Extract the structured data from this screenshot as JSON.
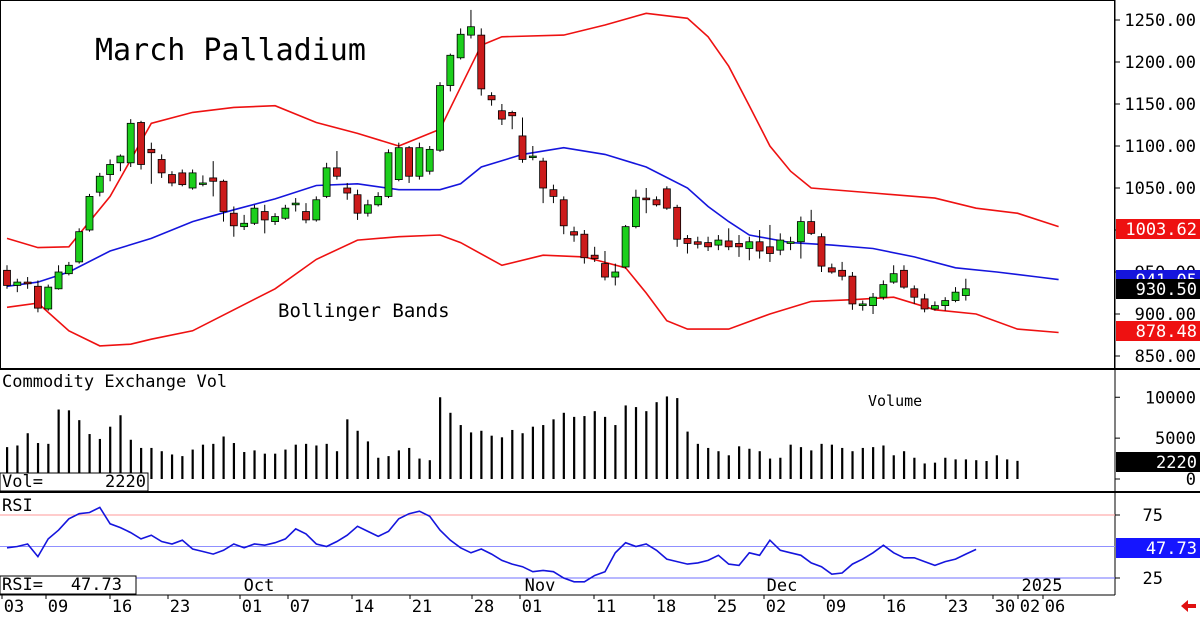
{
  "chart_data": [
    {
      "type": "candlestick",
      "title": "March Palladium",
      "annotation": "Bollinger Bands",
      "ylim": [
        835,
        1270
      ],
      "y_ticks": [
        "1250.00",
        "1200.00",
        "1150.00",
        "1100.00",
        "1050.00",
        "1000.00",
        "950.00",
        "900.00",
        "850.00"
      ],
      "last_labels": {
        "upper_band": "1003.62",
        "middle_band": "941.05",
        "lower_band": "878.48",
        "close": "930.50"
      },
      "colors": {
        "up": "#1ccf1c",
        "down": "#cc1b1b",
        "upper_band": "#ee1111",
        "lower_band": "#ee1111",
        "middle_band": "#1515dd"
      },
      "candles": [
        [
          952,
          958,
          930,
          934
        ],
        [
          934,
          942,
          926,
          938
        ],
        [
          938,
          944,
          930,
          936
        ],
        [
          933,
          940,
          902,
          907
        ],
        [
          906,
          935,
          904,
          932
        ],
        [
          930,
          958,
          929,
          950
        ],
        [
          948,
          962,
          946,
          958
        ],
        [
          962,
          1002,
          960,
          998
        ],
        [
          1000,
          1043,
          998,
          1040
        ],
        [
          1045,
          1068,
          1040,
          1064
        ],
        [
          1066,
          1084,
          1058,
          1078
        ],
        [
          1080,
          1090,
          1070,
          1088
        ],
        [
          1080,
          1132,
          1075,
          1127
        ],
        [
          1128,
          1130,
          1072,
          1078
        ],
        [
          1096,
          1104,
          1055,
          1092
        ],
        [
          1084,
          1090,
          1062,
          1068
        ],
        [
          1066,
          1070,
          1052,
          1056
        ],
        [
          1068,
          1072,
          1052,
          1054
        ],
        [
          1050,
          1072,
          1048,
          1068
        ],
        [
          1056,
          1065,
          1052,
          1056
        ],
        [
          1062,
          1082,
          1040,
          1058
        ],
        [
          1058,
          1060,
          1010,
          1022
        ],
        [
          1020,
          1028,
          992,
          1005
        ],
        [
          1004,
          1018,
          1000,
          1008
        ],
        [
          1008,
          1030,
          1006,
          1026
        ],
        [
          1022,
          1030,
          996,
          1012
        ],
        [
          1010,
          1020,
          1006,
          1016
        ],
        [
          1014,
          1030,
          1012,
          1026
        ],
        [
          1030,
          1038,
          1022,
          1032
        ],
        [
          1022,
          1032,
          1008,
          1012
        ],
        [
          1012,
          1040,
          1010,
          1036
        ],
        [
          1040,
          1080,
          1038,
          1074
        ],
        [
          1074,
          1094,
          1060,
          1064
        ],
        [
          1050,
          1056,
          1036,
          1044
        ],
        [
          1042,
          1048,
          1012,
          1020
        ],
        [
          1020,
          1036,
          1016,
          1030
        ],
        [
          1030,
          1045,
          1028,
          1040
        ],
        [
          1040,
          1096,
          1038,
          1092
        ],
        [
          1060,
          1104,
          1058,
          1098
        ],
        [
          1098,
          1100,
          1056,
          1064
        ],
        [
          1064,
          1104,
          1060,
          1098
        ],
        [
          1070,
          1100,
          1066,
          1096
        ],
        [
          1095,
          1176,
          1093,
          1172
        ],
        [
          1172,
          1210,
          1165,
          1208
        ],
        [
          1205,
          1240,
          1203,
          1233
        ],
        [
          1232,
          1262,
          1228,
          1242
        ],
        [
          1232,
          1240,
          1160,
          1168
        ],
        [
          1160,
          1164,
          1148,
          1155
        ],
        [
          1142,
          1150,
          1125,
          1132
        ],
        [
          1140,
          1142,
          1120,
          1136
        ],
        [
          1112,
          1134,
          1080,
          1084
        ],
        [
          1087,
          1100,
          1083,
          1088
        ],
        [
          1082,
          1086,
          1032,
          1050
        ],
        [
          1048,
          1054,
          1032,
          1040
        ],
        [
          1036,
          1040,
          995,
          1005
        ],
        [
          998,
          1004,
          986,
          994
        ],
        [
          995,
          1000,
          960,
          967
        ],
        [
          970,
          980,
          962,
          966
        ],
        [
          960,
          975,
          940,
          944
        ],
        [
          944,
          960,
          934,
          950
        ],
        [
          956,
          1006,
          954,
          1004
        ],
        [
          1004,
          1048,
          1002,
          1039
        ],
        [
          1038,
          1050,
          1020,
          1036
        ],
        [
          1036,
          1040,
          1028,
          1030
        ],
        [
          1049,
          1052,
          1024,
          1026
        ],
        [
          1027,
          1030,
          980,
          989
        ],
        [
          990,
          994,
          972,
          984
        ],
        [
          986,
          992,
          978,
          983
        ],
        [
          985,
          992,
          975,
          980
        ],
        [
          982,
          994,
          976,
          988
        ],
        [
          987,
          1002,
          976,
          980
        ],
        [
          984,
          994,
          968,
          980
        ],
        [
          978,
          992,
          964,
          986
        ],
        [
          986,
          1000,
          966,
          975
        ],
        [
          980,
          1006,
          962,
          972
        ],
        [
          976,
          996,
          970,
          988
        ],
        [
          984,
          992,
          976,
          986
        ],
        [
          986,
          1016,
          966,
          1010
        ],
        [
          1010,
          1024,
          994,
          996
        ],
        [
          992,
          996,
          950,
          957
        ],
        [
          955,
          960,
          948,
          950
        ],
        [
          952,
          962,
          940,
          945
        ],
        [
          945,
          950,
          905,
          912
        ],
        [
          910,
          916,
          904,
          912
        ],
        [
          910,
          925,
          900,
          920
        ],
        [
          920,
          940,
          917,
          935
        ],
        [
          938,
          958,
          936,
          948
        ],
        [
          952,
          958,
          930,
          932
        ],
        [
          930,
          934,
          912,
          920
        ],
        [
          918,
          924,
          902,
          906
        ],
        [
          906,
          915,
          904,
          910
        ],
        [
          910,
          920,
          904,
          916
        ],
        [
          916,
          932,
          914,
          926
        ],
        [
          922,
          942,
          916,
          930
        ]
      ],
      "upper_band": [
        [
          0,
          990
        ],
        [
          3,
          979
        ],
        [
          6,
          980
        ],
        [
          10,
          1040
        ],
        [
          14,
          1127
        ],
        [
          18,
          1140
        ],
        [
          22,
          1146
        ],
        [
          26,
          1148
        ],
        [
          30,
          1128
        ],
        [
          34,
          1115
        ],
        [
          38,
          1100
        ],
        [
          42,
          1120
        ],
        [
          44,
          1170
        ],
        [
          46,
          1220
        ],
        [
          48,
          1230
        ],
        [
          54,
          1232
        ],
        [
          58,
          1244
        ],
        [
          62,
          1258
        ],
        [
          66,
          1252
        ],
        [
          68,
          1230
        ],
        [
          70,
          1195
        ],
        [
          72,
          1148
        ],
        [
          74,
          1100
        ],
        [
          76,
          1070
        ],
        [
          78,
          1050
        ],
        [
          84,
          1044
        ],
        [
          90,
          1038
        ],
        [
          94,
          1026
        ],
        [
          98,
          1020
        ],
        [
          102,
          1004
        ]
      ],
      "middle_band": [
        [
          0,
          933
        ],
        [
          3,
          938
        ],
        [
          6,
          950
        ],
        [
          10,
          975
        ],
        [
          14,
          990
        ],
        [
          18,
          1010
        ],
        [
          22,
          1024
        ],
        [
          26,
          1037
        ],
        [
          30,
          1053
        ],
        [
          34,
          1055
        ],
        [
          38,
          1048
        ],
        [
          42,
          1048
        ],
        [
          44,
          1055
        ],
        [
          46,
          1075
        ],
        [
          50,
          1090
        ],
        [
          54,
          1098
        ],
        [
          58,
          1090
        ],
        [
          62,
          1075
        ],
        [
          66,
          1050
        ],
        [
          68,
          1028
        ],
        [
          70,
          1010
        ],
        [
          72,
          994
        ],
        [
          76,
          985
        ],
        [
          80,
          982
        ],
        [
          84,
          978
        ],
        [
          88,
          968
        ],
        [
          92,
          955
        ],
        [
          96,
          950
        ],
        [
          100,
          944
        ],
        [
          102,
          941
        ]
      ],
      "lower_band": [
        [
          0,
          908
        ],
        [
          3,
          913
        ],
        [
          6,
          880
        ],
        [
          9,
          862
        ],
        [
          12,
          864
        ],
        [
          14,
          870
        ],
        [
          18,
          880
        ],
        [
          22,
          905
        ],
        [
          26,
          930
        ],
        [
          30,
          965
        ],
        [
          34,
          988
        ],
        [
          38,
          992
        ],
        [
          42,
          994
        ],
        [
          44,
          985
        ],
        [
          48,
          958
        ],
        [
          52,
          970
        ],
        [
          56,
          968
        ],
        [
          60,
          955
        ],
        [
          62,
          925
        ],
        [
          64,
          892
        ],
        [
          66,
          882
        ],
        [
          70,
          882
        ],
        [
          74,
          900
        ],
        [
          78,
          915
        ],
        [
          82,
          917
        ],
        [
          86,
          920
        ],
        [
          90,
          905
        ],
        [
          94,
          900
        ],
        [
          98,
          882
        ],
        [
          102,
          878
        ]
      ]
    },
    {
      "type": "bar",
      "title": "Commodity Exchange Vol",
      "annotation": "Volume",
      "ylim": [
        0,
        11500
      ],
      "y_ticks": [
        "10000",
        "5000",
        "0"
      ],
      "readout_label": "Vol=",
      "readout_value": "2220",
      "last_label": "2220",
      "values": [
        3900,
        4100,
        5600,
        4400,
        4300,
        8500,
        8400,
        7200,
        5500,
        4900,
        6400,
        7800,
        4800,
        3800,
        3800,
        3400,
        3000,
        2800,
        3600,
        4200,
        4300,
        5200,
        4400,
        3300,
        3500,
        3100,
        3100,
        3600,
        4200,
        4300,
        4100,
        4300,
        3400,
        7300,
        5900,
        4600,
        2600,
        2800,
        3500,
        3800,
        2500,
        2300,
        10000,
        8100,
        6600,
        5700,
        5900,
        5300,
        5100,
        6000,
        5600,
        6400,
        6600,
        7300,
        8100,
        7600,
        7700,
        8300,
        7600,
        6600,
        9000,
        8800,
        8300,
        9400,
        10100,
        9900,
        5800,
        4300,
        3800,
        3400,
        2900,
        4000,
        3700,
        3400,
        2500,
        2600,
        4200,
        3900,
        3500,
        4300,
        4200,
        3800,
        3400,
        3800,
        3900,
        4100,
        2900,
        3400,
        2600,
        1900,
        2000,
        2600,
        2400,
        2400,
        2300,
        2200,
        2900,
        2400,
        2220
      ],
      "colors": {
        "bar": "#000000"
      }
    },
    {
      "type": "line",
      "title": "RSI",
      "ylim": [
        8,
        100
      ],
      "y_ticks": [
        "75",
        "25"
      ],
      "readout_label": "RSI=",
      "readout_value": "47.73",
      "last_label": "47.73",
      "reference_lines": [
        75,
        50,
        25
      ],
      "values": [
        49,
        50,
        52,
        42,
        56,
        63,
        72,
        76,
        77,
        81,
        68,
        65,
        61,
        56,
        59,
        54,
        52,
        55,
        48,
        46,
        44,
        47,
        52,
        49,
        52,
        51,
        53,
        56,
        64,
        60,
        52,
        50,
        54,
        59,
        66,
        62,
        58,
        62,
        72,
        76,
        78,
        74,
        63,
        55,
        49,
        45,
        48,
        44,
        39,
        36,
        34,
        30,
        31,
        30,
        25,
        22,
        22,
        27,
        30,
        45,
        53,
        50,
        52,
        47,
        40,
        38,
        36,
        37,
        39,
        43,
        36,
        35,
        45,
        43,
        55,
        47,
        45,
        43,
        37,
        34,
        28,
        29,
        36,
        40,
        45,
        51,
        45,
        41,
        41,
        38,
        35,
        38,
        40,
        44,
        47.73
      ],
      "colors": {
        "line": "#1515dd"
      }
    }
  ],
  "x_axis": {
    "months": [
      "Oct",
      "Nov",
      "Dec",
      "2025"
    ],
    "days": [
      "03",
      "09",
      "16",
      "23",
      "01",
      "07",
      "14",
      "21",
      "28",
      "01",
      "11",
      "18",
      "25",
      "02",
      "09",
      "16",
      "23",
      "30",
      "02",
      "06"
    ]
  },
  "ui": {
    "arrow_icon": "red-left-arrow"
  }
}
